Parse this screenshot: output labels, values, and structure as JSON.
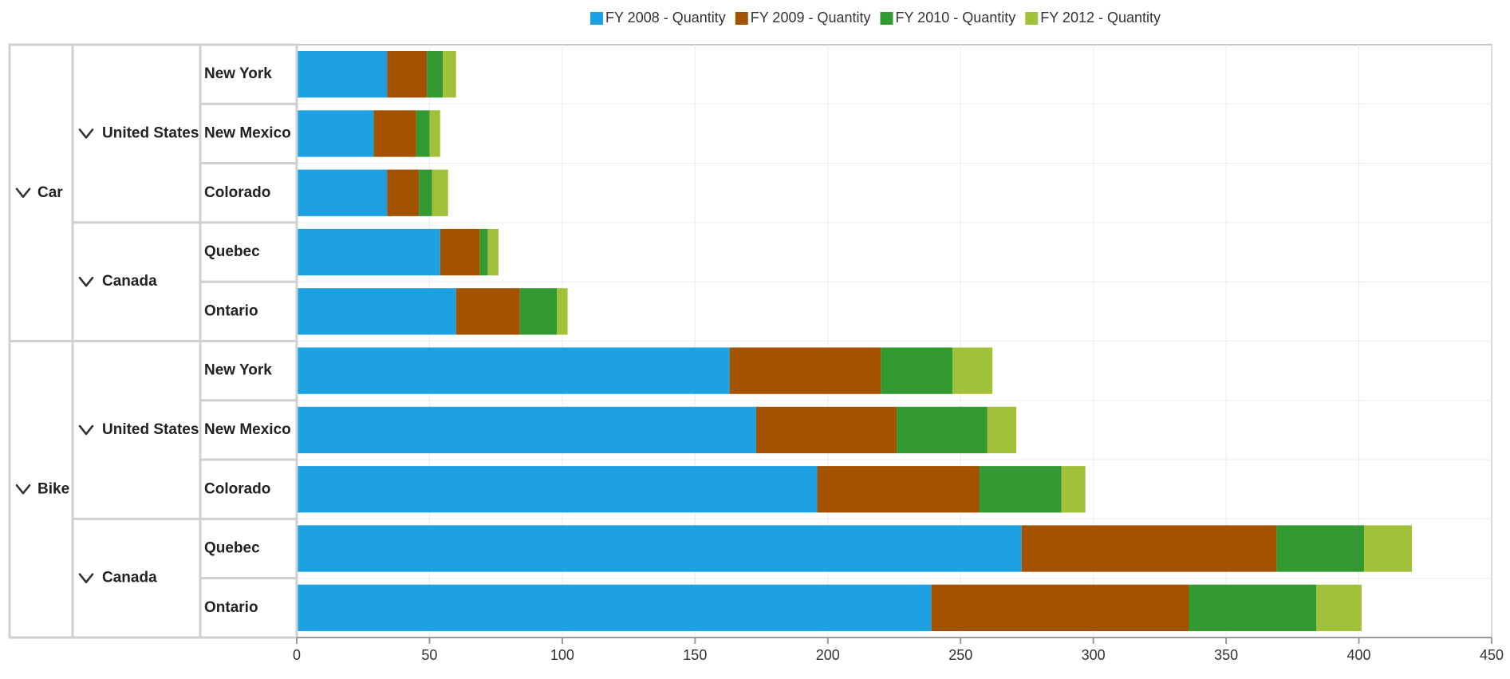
{
  "chart_data": {
    "type": "bar",
    "orientation": "horizontal",
    "stacked": true,
    "title": "",
    "xlabel": "",
    "ylabel": "",
    "xlim": [
      0,
      450
    ],
    "xticks": [
      0,
      50,
      100,
      150,
      200,
      250,
      300,
      350,
      400,
      450
    ],
    "grid": true,
    "legend_position": "top-center",
    "series": [
      {
        "name": "FY 2008 - Quantity",
        "color": "#1da1e2"
      },
      {
        "name": "FY 2009 - Quantity",
        "color": "#a35200"
      },
      {
        "name": "FY 2010 - Quantity",
        "color": "#339933"
      },
      {
        "name": "FY 2012 - Quantity",
        "color": "#a2c13a"
      }
    ],
    "groups": [
      {
        "label": "Car",
        "children": [
          {
            "label": "United States",
            "children": [
              {
                "label": "New York",
                "values": [
                  34,
                  15,
                  6,
                  5
                ]
              },
              {
                "label": "New Mexico",
                "values": [
                  29,
                  16,
                  5,
                  4
                ]
              },
              {
                "label": "Colorado",
                "values": [
                  34,
                  12,
                  5,
                  6
                ]
              }
            ]
          },
          {
            "label": "Canada",
            "children": [
              {
                "label": "Quebec",
                "values": [
                  54,
                  15,
                  3,
                  4
                ]
              },
              {
                "label": "Ontario",
                "values": [
                  60,
                  24,
                  14,
                  4
                ]
              }
            ]
          }
        ]
      },
      {
        "label": "Bike",
        "children": [
          {
            "label": "United States",
            "children": [
              {
                "label": "New York",
                "values": [
                  163,
                  57,
                  27,
                  15
                ]
              },
              {
                "label": "New Mexico",
                "values": [
                  173,
                  53,
                  34,
                  11
                ]
              },
              {
                "label": "Colorado",
                "values": [
                  196,
                  61,
                  31,
                  9
                ]
              }
            ]
          },
          {
            "label": "Canada",
            "children": [
              {
                "label": "Quebec",
                "values": [
                  273,
                  96,
                  33,
                  18
                ]
              },
              {
                "label": "Ontario",
                "values": [
                  239,
                  97,
                  48,
                  17
                ]
              }
            ]
          }
        ]
      }
    ]
  }
}
